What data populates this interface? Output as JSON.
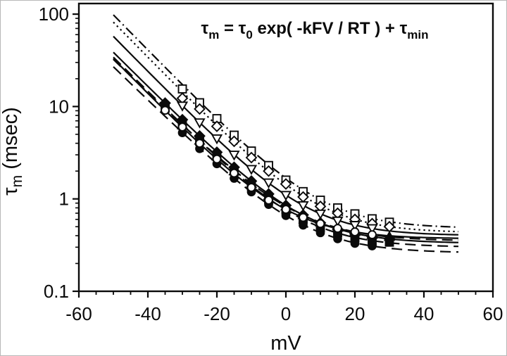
{
  "figure": {
    "background": "#ffffff",
    "ink_color": "#0a0a0a",
    "border_color": "#b8b8b8"
  },
  "equation": {
    "parts": [
      {
        "base": "τ",
        "sub": "m"
      },
      {
        "base": " = ",
        "sub": ""
      },
      {
        "base": "τ",
        "sub": "0"
      },
      {
        "base": "   exp( -kFV / RT ) + ",
        "sub": ""
      },
      {
        "base": "τ",
        "sub": "min"
      }
    ]
  },
  "axes": {
    "x": {
      "label": "mV",
      "min": -60,
      "max": 60,
      "major_ticks": [
        -60,
        -40,
        -20,
        0,
        20,
        40,
        60
      ],
      "major_tick_labels": [
        "-60",
        "-40",
        "-20",
        "0",
        "20",
        "40",
        "60"
      ],
      "minor_step": 5
    },
    "y": {
      "label_parts": [
        {
          "base": "τ",
          "sub": "m"
        },
        {
          "base": " (msec)",
          "sub": ""
        }
      ],
      "scale": "log",
      "min": 0.1,
      "max": 130,
      "major_ticks": [
        0.1,
        1,
        10,
        100
      ],
      "major_tick_labels": [
        "0.1",
        "1",
        "10",
        "100"
      ]
    }
  },
  "chart_data": {
    "type": "scatter",
    "title_equation": "tau_m = tau_0 * exp(-kFV/RT) + tau_min",
    "x_unit": "mV",
    "y_unit": "msec",
    "y_scale": "log",
    "xlim": [
      -60,
      60
    ],
    "ylim": [
      0.1,
      130
    ],
    "grid": false,
    "legend": "none",
    "fit_model": "tau(V) = tau0 * exp(-k*V) + tau_min",
    "curve_x_range": [
      -50,
      50
    ],
    "series": [
      {
        "name": "open-square",
        "marker": "square",
        "fill": "open",
        "line_style": "dashdot",
        "fit": {
          "tau0": 1.2,
          "k": 0.088,
          "tau_min": 0.48
        },
        "x": [
          -30,
          -25,
          -20,
          -15,
          -10,
          -5,
          0,
          5,
          10,
          15,
          20,
          25,
          30
        ],
        "y": [
          15.5,
          11.0,
          7.4,
          4.9,
          3.3,
          2.3,
          1.6,
          1.2,
          0.97,
          0.8,
          0.69,
          0.61,
          0.56
        ]
      },
      {
        "name": "open-diamond",
        "marker": "diamond",
        "fill": "open",
        "line_style": "dot",
        "fit": {
          "tau0": 1.0,
          "k": 0.088,
          "tau_min": 0.43
        },
        "x": [
          -30,
          -25,
          -20,
          -15,
          -10,
          -5,
          0,
          5,
          10,
          15,
          20,
          25,
          30
        ],
        "y": [
          12.3,
          9.4,
          6.1,
          4.2,
          2.8,
          2.0,
          1.45,
          1.05,
          0.83,
          0.7,
          0.6,
          0.54,
          0.5
        ]
      },
      {
        "name": "open-triangle-down",
        "marker": "triangle-down",
        "fill": "open",
        "line_style": "solid",
        "fit": {
          "tau0": 0.7,
          "k": 0.088,
          "tau_min": 0.4
        },
        "x": [
          -30,
          -25,
          -20,
          -15,
          -10,
          -5,
          0,
          5,
          10,
          15,
          20,
          25
        ],
        "y": [
          10.2,
          6.7,
          4.5,
          3.0,
          2.1,
          1.5,
          1.1,
          0.85,
          0.69,
          0.58,
          0.52,
          0.48
        ]
      },
      {
        "name": "open-circle",
        "marker": "circle",
        "fill": "open",
        "line_style": "solid",
        "fit": {
          "tau0": 0.4,
          "k": 0.088,
          "tau_min": 0.37
        },
        "x": [
          -35,
          -30,
          -25,
          -20,
          -15,
          -10,
          -5,
          0,
          5,
          10,
          15,
          20,
          25
        ],
        "y": [
          9.1,
          6.0,
          4.0,
          2.7,
          1.9,
          1.33,
          0.97,
          0.77,
          0.63,
          0.54,
          0.48,
          0.44,
          0.41
        ]
      },
      {
        "name": "filled-square",
        "marker": "square",
        "fill": "filled",
        "line_style": "longdash",
        "fit": {
          "tau0": 0.46,
          "k": 0.086,
          "tau_min": 0.3
        },
        "x": [
          -35,
          -30,
          -25,
          -20,
          -15,
          -10,
          -5,
          0,
          5,
          10,
          15,
          20,
          25,
          30
        ],
        "y": [
          9.6,
          6.4,
          4.2,
          2.9,
          2.0,
          1.38,
          0.99,
          0.76,
          0.6,
          0.49,
          0.43,
          0.38,
          0.35,
          0.34
        ]
      },
      {
        "name": "filled-diamond",
        "marker": "diamond",
        "fill": "filled",
        "line_style": "solid",
        "fit": {
          "tau0": 0.52,
          "k": 0.086,
          "tau_min": 0.33
        },
        "x": [
          -35,
          -30,
          -25,
          -20,
          -15,
          -10,
          -5,
          0,
          5,
          10,
          15,
          20,
          25,
          30
        ],
        "y": [
          10.9,
          7.2,
          4.8,
          3.2,
          2.2,
          1.56,
          1.13,
          0.85,
          0.67,
          0.55,
          0.47,
          0.42,
          0.39,
          0.37
        ]
      },
      {
        "name": "filled-triangle-up",
        "marker": "triangle-up",
        "fill": "filled",
        "line_style": "longdash",
        "fit": {
          "tau0": 0.48,
          "k": 0.084,
          "tau_min": 0.35
        },
        "x": [
          -30,
          -25,
          -20,
          -15,
          -10,
          -5,
          0,
          5,
          10,
          15,
          20,
          25,
          30
        ],
        "y": [
          6.3,
          4.3,
          2.9,
          2.0,
          1.46,
          1.08,
          0.83,
          0.67,
          0.56,
          0.49,
          0.44,
          0.41,
          0.39
        ]
      },
      {
        "name": "filled-circle",
        "marker": "circle",
        "fill": "filled",
        "line_style": "longdash",
        "fit": {
          "tau0": 0.4,
          "k": 0.084,
          "tau_min": 0.26
        },
        "x": [
          -30,
          -25,
          -20,
          -15,
          -10,
          -5,
          0,
          5,
          10,
          15,
          20,
          25
        ],
        "y": [
          5.2,
          3.5,
          2.4,
          1.67,
          1.19,
          0.87,
          0.66,
          0.52,
          0.43,
          0.37,
          0.33,
          0.31
        ]
      }
    ]
  }
}
